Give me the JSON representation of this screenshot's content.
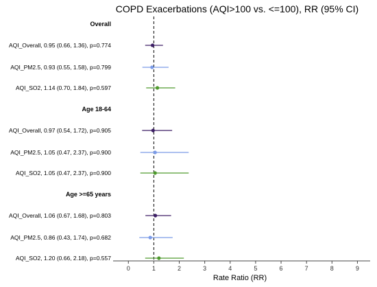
{
  "chart_data": {
    "type": "forest",
    "title": "COPD Exacerbations (AQI>100 vs. <=100), RR (95% CI)",
    "xlabel": "Rate Ratio (RR)",
    "xlim": [
      -0.6,
      9.5
    ],
    "xticks": [
      0,
      1,
      2,
      3,
      4,
      5,
      6,
      7,
      8,
      9
    ],
    "reference_line": 1,
    "colors": {
      "AQI_Overall": "#3d1f66",
      "AQI_PM2.5": "#7b9be8",
      "AQI_SO2": "#4f9a2e"
    },
    "groups": [
      {
        "label": "Overall",
        "rows": [
          {
            "label": "AQI_Overall, 0.95 (0.66, 1.36), p=0.774",
            "key": "AQI_Overall",
            "rr": 0.95,
            "lo": 0.66,
            "hi": 1.36
          },
          {
            "label": "AQI_PM2.5, 0.93 (0.55, 1.58), p=0.799",
            "key": "AQI_PM2.5",
            "rr": 0.93,
            "lo": 0.55,
            "hi": 1.58
          },
          {
            "label": "AQI_SO2, 1.14 (0.70, 1.84), p=0.597",
            "key": "AQI_SO2",
            "rr": 1.14,
            "lo": 0.7,
            "hi": 1.84
          }
        ]
      },
      {
        "label": "Age 18-64",
        "rows": [
          {
            "label": "AQI_Overall, 0.97 (0.54, 1.72), p=0.905",
            "key": "AQI_Overall",
            "rr": 0.97,
            "lo": 0.54,
            "hi": 1.72
          },
          {
            "label": "AQI_PM2.5, 1.05 (0.47, 2.37), p=0.900",
            "key": "AQI_PM2.5",
            "rr": 1.05,
            "lo": 0.47,
            "hi": 2.37
          },
          {
            "label": "AQI_SO2, 1.05 (0.47, 2.37), p=0.900",
            "key": "AQI_SO2",
            "rr": 1.05,
            "lo": 0.47,
            "hi": 2.37
          }
        ]
      },
      {
        "label": "Age >=65 years",
        "rows": [
          {
            "label": "AQI_Overall, 1.06 (0.67, 1.68), p=0.803",
            "key": "AQI_Overall",
            "rr": 1.06,
            "lo": 0.67,
            "hi": 1.68
          },
          {
            "label": "AQI_PM2.5, 0.86 (0.43, 1.74), p=0.682",
            "key": "AQI_PM2.5",
            "rr": 0.86,
            "lo": 0.43,
            "hi": 1.74
          },
          {
            "label": "AQI_SO2, 1.20 (0.66, 2.18), p=0.557",
            "key": "AQI_SO2",
            "rr": 1.2,
            "lo": 0.66,
            "hi": 2.18
          }
        ]
      }
    ]
  }
}
